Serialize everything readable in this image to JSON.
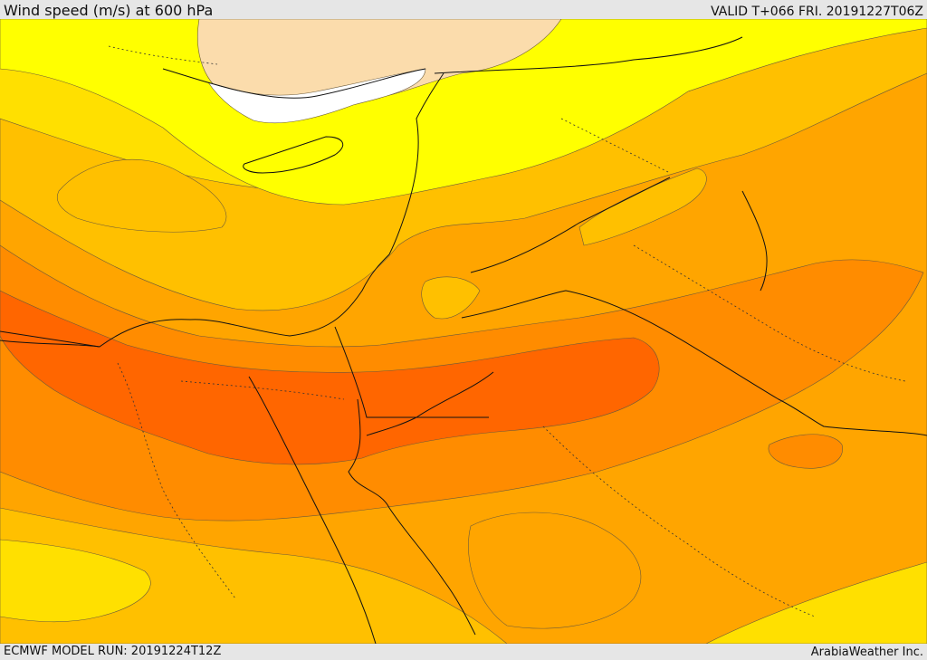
{
  "header": {
    "title": "Wind speed (m/s) at 600 hPa",
    "valid": "VALID T+066 FRI. 20191227T06Z"
  },
  "footer": {
    "model_run": "ECMWF MODEL RUN: 20191224T12Z",
    "credit": "ArabiaWeather Inc."
  },
  "colors": {
    "white": "#ffffff",
    "tan": "#fbdcac",
    "yellow": "#ffff00",
    "gold": "#ffe000",
    "light_orange": "#ffc000",
    "orange": "#ffa500",
    "dark_orange": "#ff8c00",
    "red_orange": "#ff6600"
  }
}
